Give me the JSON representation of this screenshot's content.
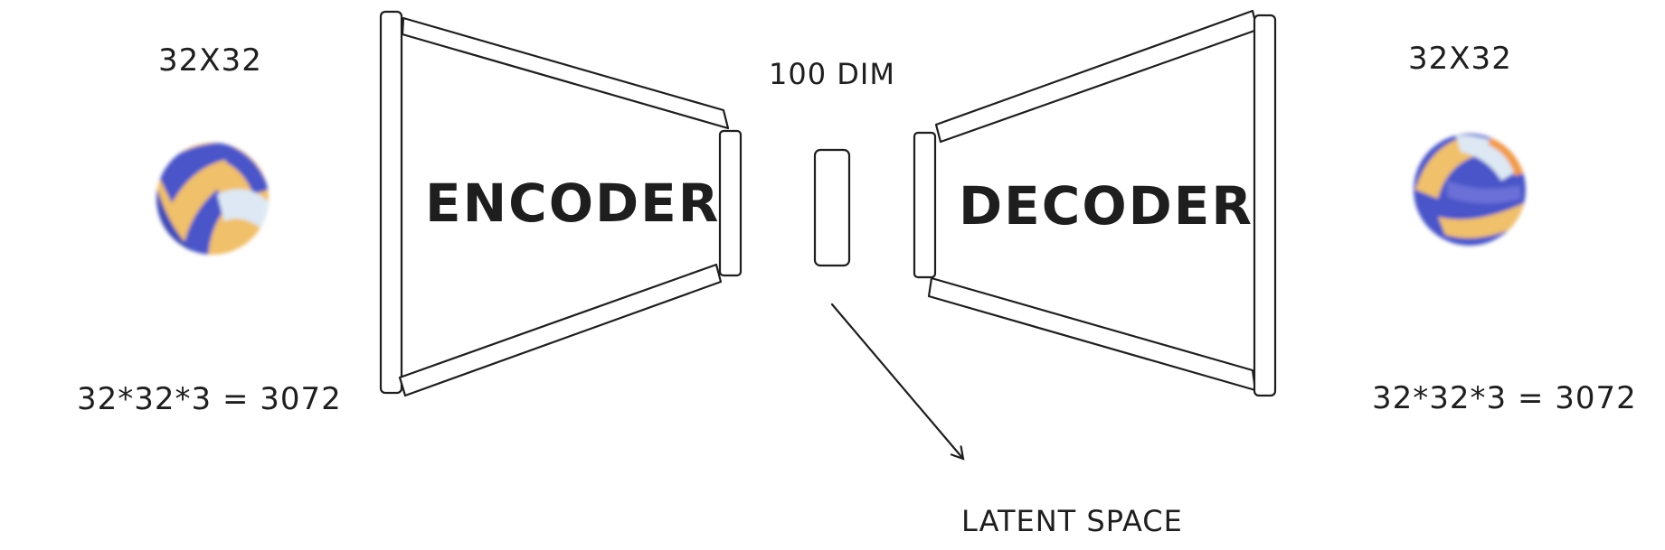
{
  "input": {
    "size_label": "32X32",
    "flat_label": "32*32*3 = 3072"
  },
  "encoder": {
    "label": "ENCODER"
  },
  "latent": {
    "dim_label": "100 DIM",
    "space_label": "LATENT SPACE"
  },
  "decoder": {
    "label": "DECODER"
  },
  "output": {
    "size_label": "32X32",
    "flat_label": "32*32*3 = 3072"
  },
  "colors": {
    "ink": "#1e1e1e",
    "ball_blue": "#4a55c8",
    "ball_yellow": "#f0c06a",
    "ball_light": "#dde8f4",
    "ball_orange": "#f29a4a"
  }
}
